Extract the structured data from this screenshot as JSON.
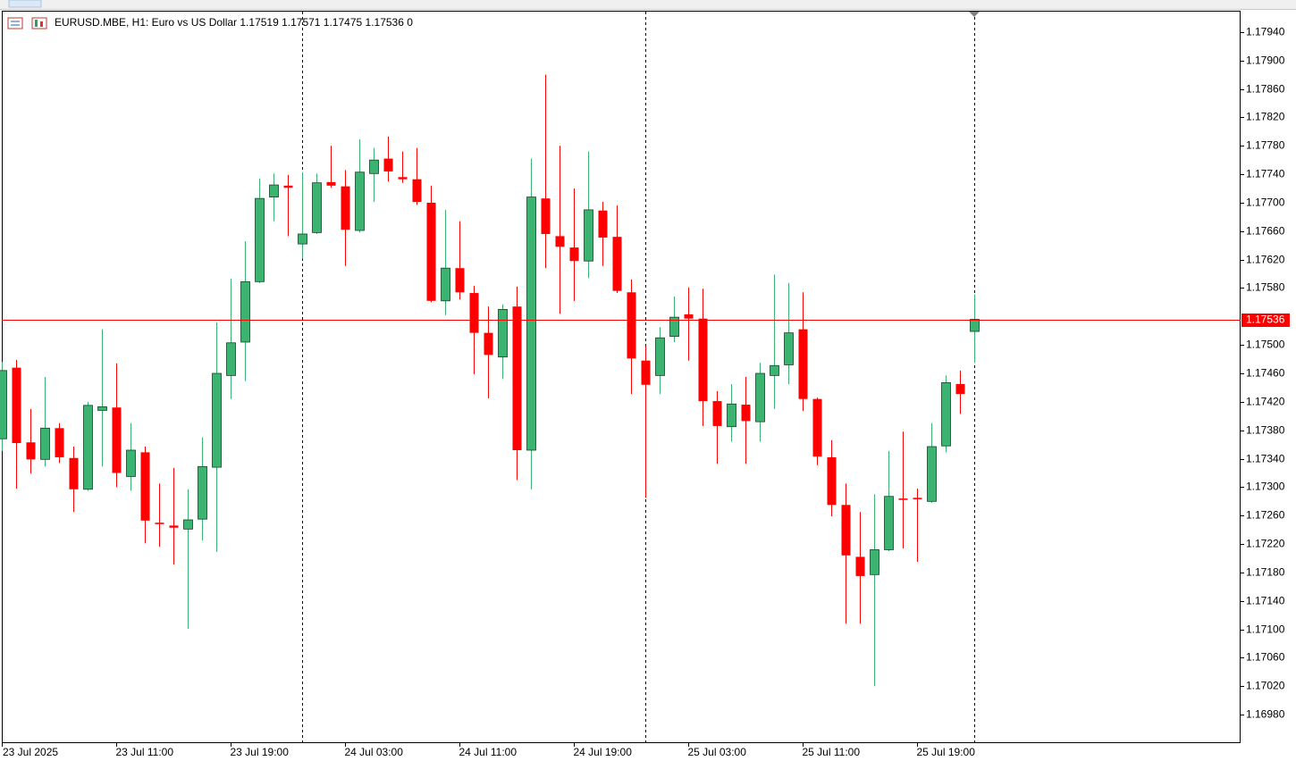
{
  "chart_data": {
    "type": "candlestick",
    "title": "EURUSD.MBE, H1:  Euro vs US Dollar  1.17519 1.17571 1.17475 1.17536  0",
    "categories": [
      "23 Jul 2025",
      null,
      null,
      null,
      null,
      null,
      null,
      null,
      "23 Jul 11:00",
      null,
      null,
      null,
      null,
      null,
      null,
      null,
      "23 Jul 19:00",
      null,
      null,
      null,
      null,
      null,
      null,
      null,
      "24 Jul 03:00",
      null,
      null,
      null,
      null,
      null,
      null,
      null,
      "24 Jul 11:00",
      null,
      null,
      null,
      null,
      null,
      null,
      null,
      "24 Jul 19:00",
      null,
      null,
      null,
      null,
      null,
      null,
      null,
      "25 Jul 03:00",
      null,
      null,
      null,
      null,
      null,
      null,
      null,
      "25 Jul 11:00",
      null,
      null,
      null,
      null,
      null,
      null,
      null,
      "25 Jul 19:00",
      null,
      null,
      null,
      null
    ],
    "open": [
      1.17368,
      1.17468,
      1.17363,
      1.17339,
      1.17383,
      1.17341,
      1.17297,
      1.17408,
      1.17412,
      1.17315,
      1.17349,
      1.1725,
      1.17246,
      1.17241,
      1.17255,
      1.17328,
      1.17457,
      1.17504,
      1.17589,
      1.17708,
      1.17724,
      1.17642,
      1.17658,
      1.17729,
      1.17723,
      1.17661,
      1.17741,
      1.17762,
      1.17736,
      1.17733,
      1.177,
      1.17562,
      1.17608,
      1.17573,
      1.17517,
      1.17483,
      1.17554,
      1.17352,
      1.17706,
      1.17653,
      1.17637,
      1.17618,
      1.17689,
      1.17652,
      1.17574,
      1.17478,
      1.17457,
      1.17512,
      1.17543,
      1.17537,
      1.17421,
      1.17385,
      1.17416,
      1.17392,
      1.17457,
      1.17472,
      1.17522,
      1.17424,
      1.17342,
      1.17275,
      1.17202,
      1.17177,
      1.17212,
      1.17284,
      1.17285,
      1.1728,
      1.17358,
      1.17445,
      1.17519
    ],
    "high": [
      1.17476,
      1.17479,
      1.1741,
      1.17455,
      1.1739,
      1.17357,
      1.1742,
      1.17522,
      1.17474,
      1.1739,
      1.17357,
      1.17305,
      1.17327,
      1.17297,
      1.1737,
      1.17532,
      1.17593,
      1.17646,
      1.17734,
      1.17741,
      1.17739,
      1.17743,
      1.17741,
      1.1778,
      1.17746,
      1.17789,
      1.17777,
      1.17793,
      1.17772,
      1.17777,
      1.17724,
      1.1769,
      1.17674,
      1.17583,
      1.17554,
      1.17557,
      1.17582,
      1.17762,
      1.1788,
      1.1778,
      1.1772,
      1.17772,
      1.17701,
      1.17696,
      1.17592,
      1.17498,
      1.17525,
      1.17568,
      1.17581,
      1.17579,
      1.17435,
      1.17445,
      1.17455,
      1.17475,
      1.17599,
      1.17587,
      1.17574,
      1.17426,
      1.17366,
      1.17305,
      1.17265,
      1.1729,
      1.17351,
      1.17378,
      1.17298,
      1.1739,
      1.17457,
      1.17464,
      1.17571
    ],
    "low": [
      1.17351,
      1.17298,
      1.17319,
      1.17329,
      1.17334,
      1.17265,
      1.17295,
      1.17329,
      1.173,
      1.17295,
      1.17221,
      1.17216,
      1.17191,
      1.17101,
      1.17225,
      1.17209,
      1.17424,
      1.17449,
      1.17587,
      1.17674,
      1.17653,
      1.17621,
      1.17656,
      1.17721,
      1.17611,
      1.17658,
      1.17701,
      1.1773,
      1.17728,
      1.17697,
      1.1756,
      1.17542,
      1.17564,
      1.17459,
      1.17425,
      1.17452,
      1.1731,
      1.17297,
      1.17608,
      1.17544,
      1.17562,
      1.17594,
      1.17611,
      1.17573,
      1.17431,
      1.17285,
      1.17431,
      1.17504,
      1.17478,
      1.17386,
      1.17333,
      1.17364,
      1.17333,
      1.17364,
      1.1741,
      1.17445,
      1.17407,
      1.17331,
      1.17259,
      1.17108,
      1.17108,
      1.1702,
      1.1721,
      1.17214,
      1.17195,
      1.17278,
      1.17349,
      1.17403,
      1.17475
    ],
    "close": [
      1.17464,
      1.17362,
      1.17339,
      1.17383,
      1.17342,
      1.17297,
      1.17415,
      1.17413,
      1.1732,
      1.17352,
      1.17253,
      1.17248,
      1.17243,
      1.17254,
      1.17329,
      1.1746,
      1.17503,
      1.17589,
      1.17706,
      1.17725,
      1.17721,
      1.17656,
      1.17728,
      1.17724,
      1.17662,
      1.17743,
      1.1776,
      1.17744,
      1.17733,
      1.17701,
      1.17562,
      1.17608,
      1.17574,
      1.17517,
      1.17486,
      1.1755,
      1.17352,
      1.17708,
      1.17656,
      1.17638,
      1.17618,
      1.1769,
      1.17651,
      1.17576,
      1.17481,
      1.17444,
      1.1751,
      1.17539,
      1.17537,
      1.17421,
      1.17386,
      1.17417,
      1.17393,
      1.1746,
      1.17471,
      1.17517,
      1.17424,
      1.17343,
      1.17275,
      1.17204,
      1.17175,
      1.17212,
      1.17287,
      1.17282,
      1.17283,
      1.17357,
      1.17447,
      1.17431,
      1.17536
    ],
    "up_color": "#3cb371",
    "down_color": "#ff0000",
    "ylim": [
      1.1694,
      1.1797
    ],
    "yticks": [
      {
        "value": 1.1794,
        "label": "1.17940"
      },
      {
        "value": 1.179,
        "label": "1.17900"
      },
      {
        "value": 1.1786,
        "label": "1.17860"
      },
      {
        "value": 1.1782,
        "label": "1.17820"
      },
      {
        "value": 1.1778,
        "label": "1.17780"
      },
      {
        "value": 1.1774,
        "label": "1.17740"
      },
      {
        "value": 1.177,
        "label": "1.17700"
      },
      {
        "value": 1.1766,
        "label": "1.17660"
      },
      {
        "value": 1.1762,
        "label": "1.17620"
      },
      {
        "value": 1.1758,
        "label": "1.17580"
      },
      {
        "value": 1.175,
        "label": "1.17500"
      },
      {
        "value": 1.1746,
        "label": "1.17460"
      },
      {
        "value": 1.1742,
        "label": "1.17420"
      },
      {
        "value": 1.1738,
        "label": "1.17380"
      },
      {
        "value": 1.1734,
        "label": "1.17340"
      },
      {
        "value": 1.173,
        "label": "1.17300"
      },
      {
        "value": 1.1726,
        "label": "1.17260"
      },
      {
        "value": 1.1722,
        "label": "1.17220"
      },
      {
        "value": 1.1718,
        "label": "1.17180"
      },
      {
        "value": 1.1714,
        "label": "1.17140"
      },
      {
        "value": 1.171,
        "label": "1.17100"
      },
      {
        "value": 1.1706,
        "label": "1.17060"
      },
      {
        "value": 1.1702,
        "label": "1.17020"
      },
      {
        "value": 1.1698,
        "label": "1.16980"
      }
    ],
    "price_line": {
      "value": 1.17536,
      "label": "1.17536",
      "color": "#ff0000"
    },
    "grid": false
  }
}
